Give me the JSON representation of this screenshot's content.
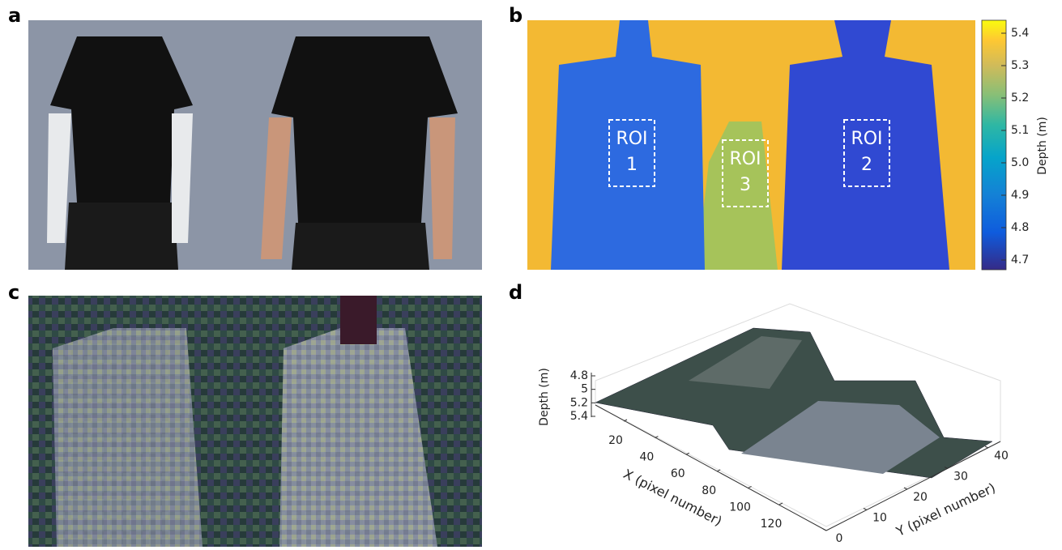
{
  "panels": {
    "a": {
      "label": "a"
    },
    "b": {
      "label": "b",
      "rois": [
        {
          "name": "ROI",
          "id": "1"
        },
        {
          "name": "ROI",
          "id": "3"
        },
        {
          "name": "ROI",
          "id": "2"
        }
      ],
      "colorbar": {
        "label": "Depth (m)",
        "lim": [
          4.67,
          5.44
        ],
        "ticks": [
          4.7,
          4.8,
          4.9,
          {
            "value": 5,
            "label": "5.0"
          },
          5.1,
          5.2,
          5.3,
          5.4
        ]
      }
    },
    "c": {
      "label": "c"
    },
    "d": {
      "label": "d",
      "depth_axis": {
        "label": "Depth (m)",
        "ticks": [
          4.8,
          5,
          5.2,
          5.4
        ]
      },
      "x_axis": {
        "label": "X (pixel number)",
        "ticks": [
          20,
          40,
          60,
          80,
          100,
          120
        ]
      },
      "y_axis": {
        "label": "Y (pixel number)",
        "ticks": [
          0,
          10,
          20,
          30,
          40
        ]
      }
    }
  }
}
